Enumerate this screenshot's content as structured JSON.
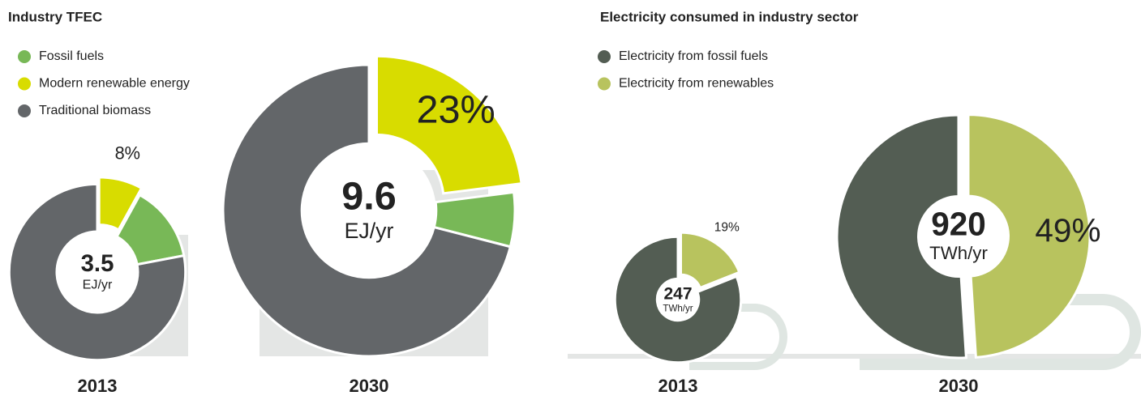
{
  "chart_data": [
    {
      "type": "donut",
      "title": "Industry TFEC",
      "categories": [
        "2013",
        "2030"
      ],
      "totals": [
        3.5,
        9.6
      ],
      "total_unit": "EJ/yr",
      "series": [
        {
          "name": "Fossil fuels",
          "color": "#78b857",
          "values": [
            14,
            6
          ]
        },
        {
          "name": "Modern renewable energy",
          "color": "#d8dc00",
          "values": [
            8,
            23
          ],
          "value_labels": [
            "8%",
            "23%"
          ]
        },
        {
          "name": "Traditional biomass",
          "color": "#636669",
          "values": [
            78,
            71
          ]
        }
      ]
    },
    {
      "type": "donut",
      "title": "Electricity consumed in industry sector",
      "categories": [
        "2013",
        "2030"
      ],
      "totals": [
        247,
        920
      ],
      "total_unit": "TWh/yr",
      "series": [
        {
          "name": "Electricity from fossil fuels",
          "color": "#535d53",
          "values": [
            81,
            51
          ]
        },
        {
          "name": "Electricity from renewables",
          "color": "#b8c35e",
          "values": [
            19,
            49
          ],
          "value_labels": [
            "19%",
            "49%"
          ]
        }
      ]
    }
  ]
}
